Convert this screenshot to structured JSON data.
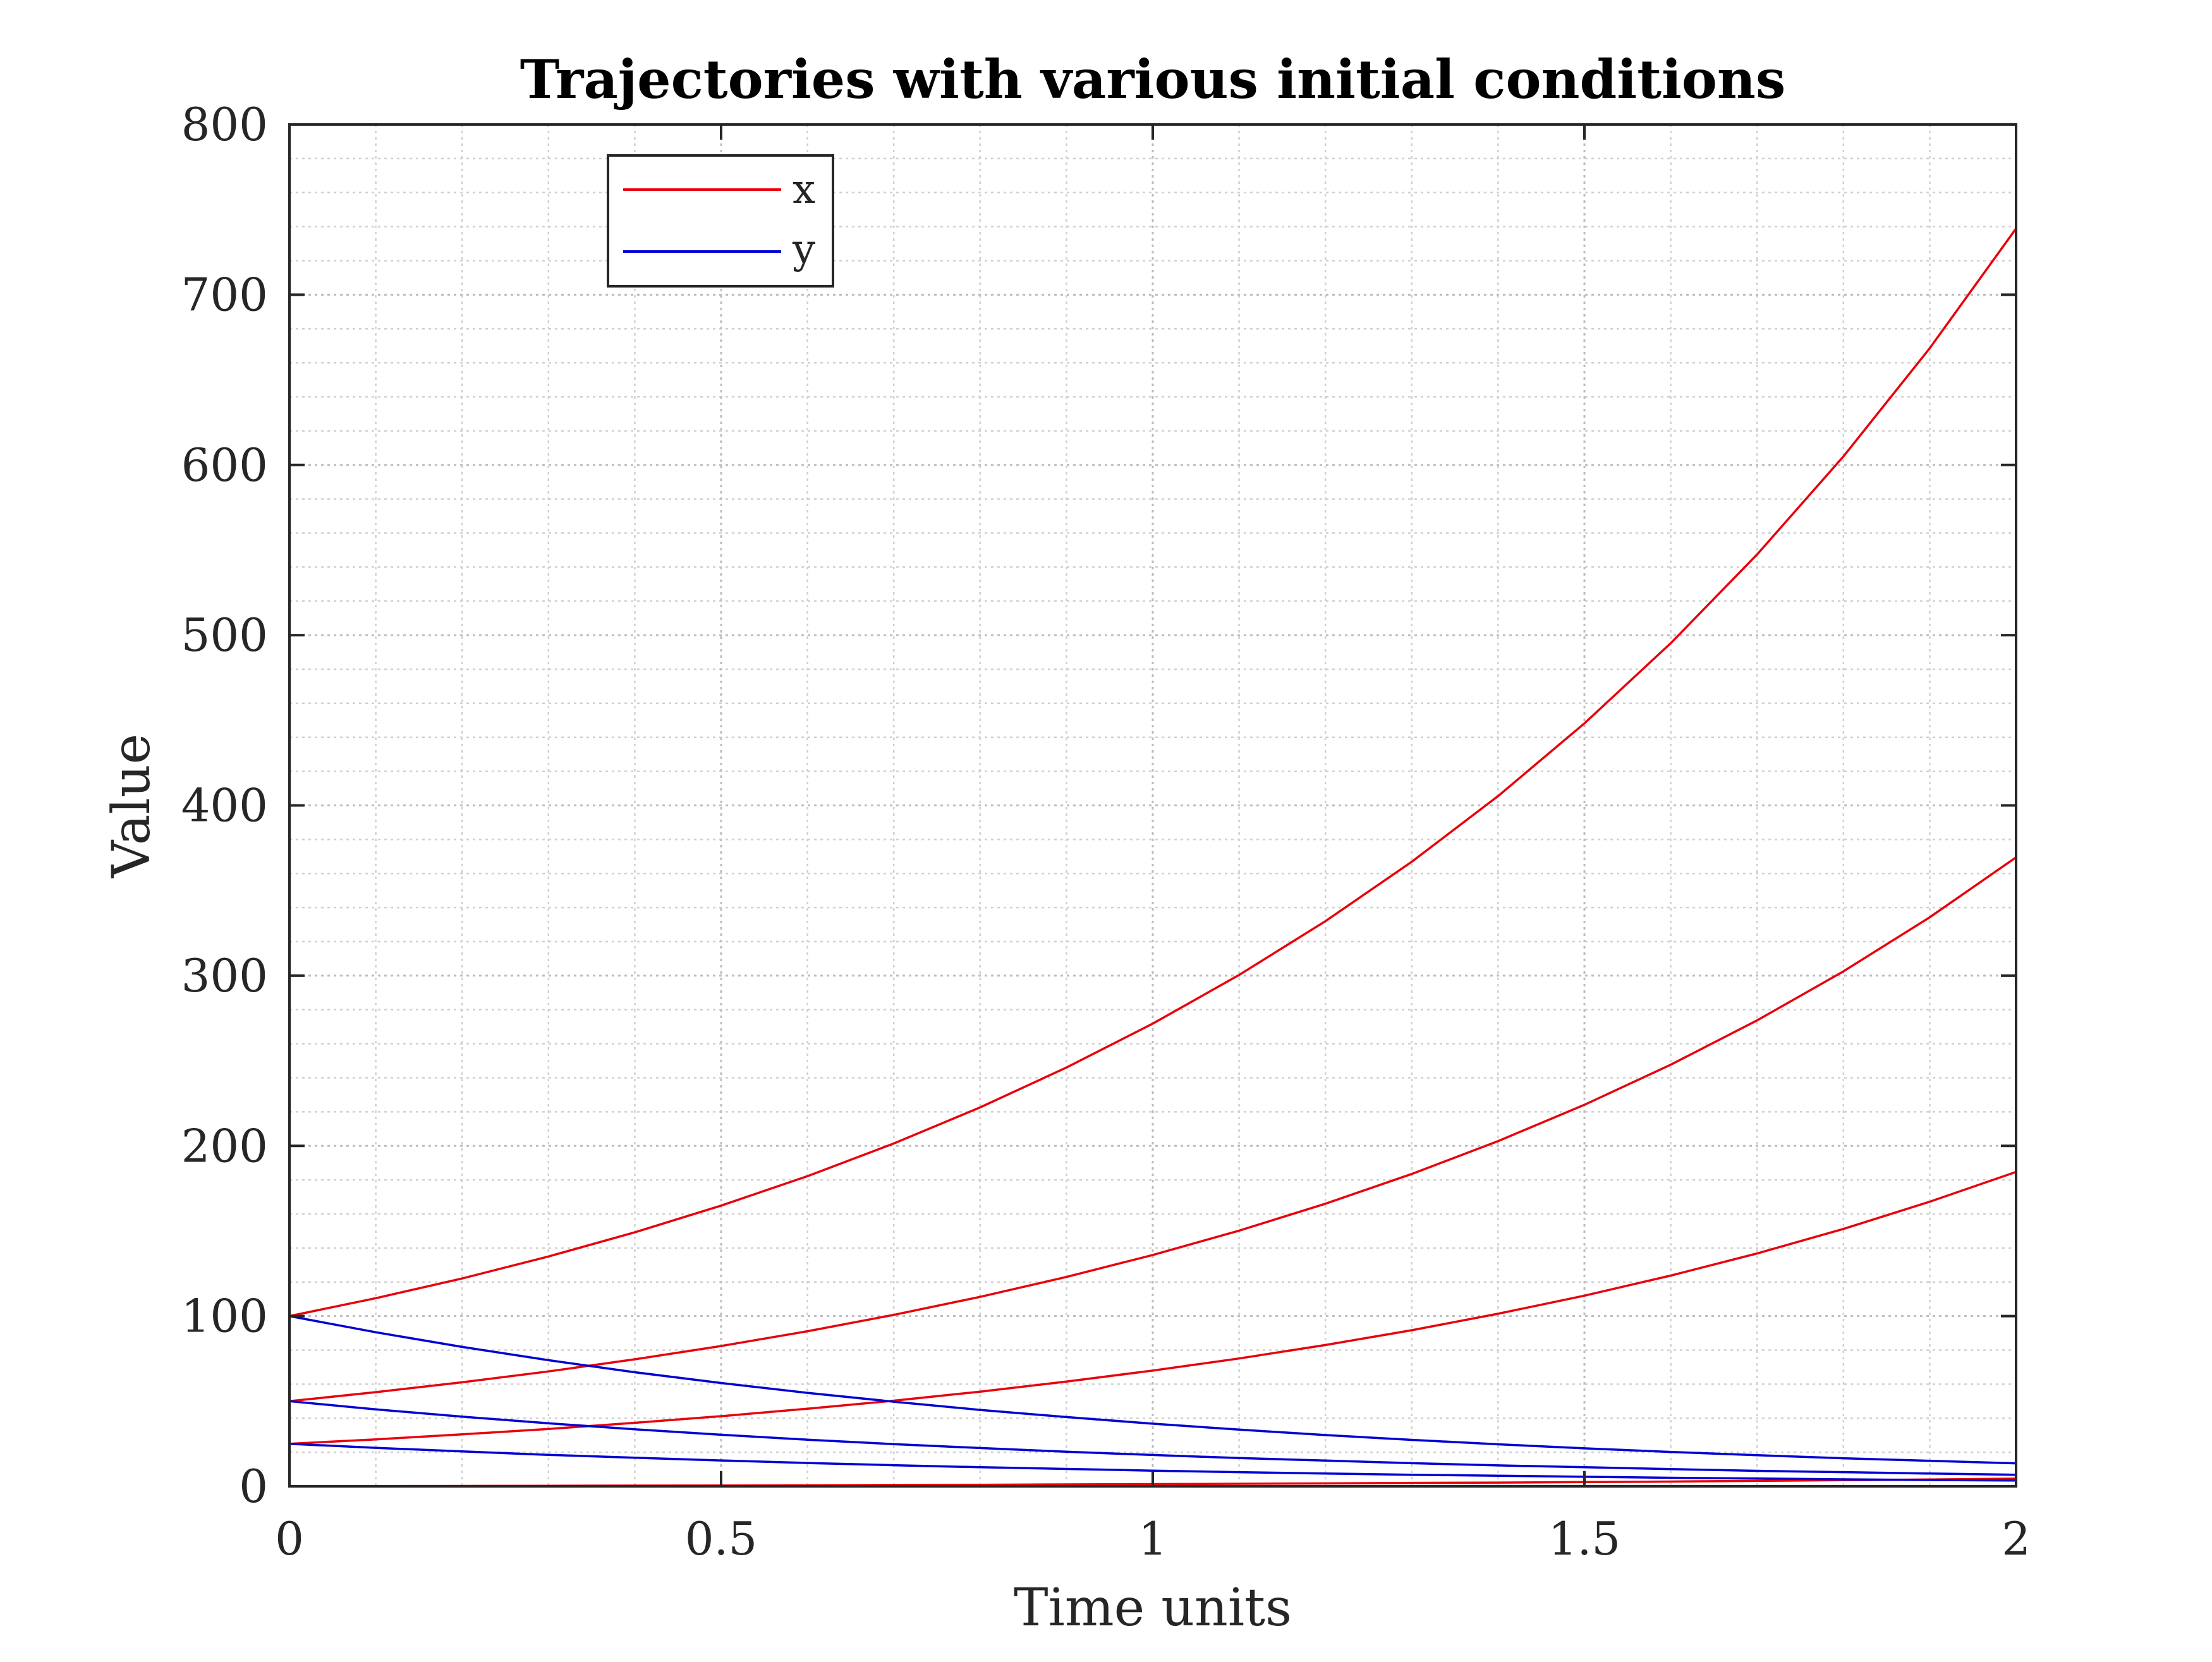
{
  "chart_data": {
    "type": "line",
    "title": "Trajectories with various initial conditions",
    "xlabel": "Time units",
    "ylabel": "Value",
    "xlim": [
      0,
      2
    ],
    "ylim": [
      0,
      800
    ],
    "xticks": [
      0,
      0.5,
      1,
      1.5,
      2
    ],
    "xtick_labels": [
      "0",
      "0.5",
      "1",
      "1.5",
      "2"
    ],
    "yticks": [
      0,
      100,
      200,
      300,
      400,
      500,
      600,
      700,
      800
    ],
    "ytick_labels": [
      "0",
      "100",
      "200",
      "300",
      "400",
      "500",
      "600",
      "700",
      "800"
    ],
    "grid": "major and minor",
    "legend": {
      "position": "top-left",
      "entries": [
        "x",
        "y"
      ]
    },
    "colors": {
      "x": "#e8000b",
      "y": "#0000d4"
    },
    "x": [
      0,
      0.1,
      0.2,
      0.3,
      0.4,
      0.5,
      0.6,
      0.7,
      0.8,
      0.9,
      1.0,
      1.1,
      1.2,
      1.3,
      1.4,
      1.5,
      1.6,
      1.7,
      1.8,
      1.9,
      2.0
    ],
    "series": [
      {
        "name": "x",
        "color": "#e8000b",
        "values": [
          100,
          110.5,
          122.1,
          135.0,
          149.2,
          164.9,
          182.2,
          201.4,
          222.6,
          246.0,
          271.8,
          300.4,
          332.0,
          366.9,
          405.5,
          448.2,
          495.3,
          547.4,
          605.0,
          668.6,
          738.9
        ]
      },
      {
        "series_group": "x",
        "color": "#e8000b",
        "values": [
          50,
          55.3,
          61.1,
          67.5,
          74.6,
          82.4,
          91.1,
          100.7,
          111.3,
          123.0,
          135.9,
          150.2,
          166.0,
          183.5,
          202.8,
          224.1,
          247.7,
          273.7,
          302.5,
          334.3,
          369.5
        ]
      },
      {
        "series_group": "x",
        "color": "#e8000b",
        "values": [
          25,
          27.6,
          30.5,
          33.7,
          37.3,
          41.2,
          45.6,
          50.3,
          55.6,
          61.5,
          68.0,
          75.1,
          83.0,
          91.7,
          101.4,
          112.0,
          123.8,
          136.8,
          151.2,
          167.2,
          184.7
        ]
      },
      {
        "series_group": "x",
        "color": "#e8000b",
        "values": [
          0,
          0.1,
          0.2,
          0.3,
          0.4,
          0.5,
          0.6,
          0.8,
          0.9,
          1.1,
          1.3,
          1.5,
          1.7,
          2.0,
          2.2,
          2.5,
          2.8,
          3.2,
          3.6,
          4.0,
          4.5
        ]
      },
      {
        "name": "y",
        "color": "#0000d4",
        "values": [
          100,
          90.5,
          81.9,
          74.1,
          67.0,
          60.7,
          54.9,
          49.7,
          44.9,
          40.7,
          36.8,
          33.3,
          30.1,
          27.3,
          24.7,
          22.3,
          20.2,
          18.3,
          16.5,
          15.0,
          13.5
        ]
      },
      {
        "series_group": "y",
        "color": "#0000d4",
        "values": [
          50,
          45.2,
          40.9,
          37.0,
          33.5,
          30.3,
          27.4,
          24.8,
          22.5,
          20.3,
          18.4,
          16.6,
          15.1,
          13.6,
          12.3,
          11.2,
          10.1,
          9.1,
          8.3,
          7.5,
          6.8
        ]
      },
      {
        "series_group": "y",
        "color": "#0000d4",
        "values": [
          25,
          22.6,
          20.5,
          18.5,
          16.8,
          15.2,
          13.7,
          12.4,
          11.2,
          10.2,
          9.2,
          8.3,
          7.5,
          6.8,
          6.2,
          5.6,
          5.0,
          4.6,
          4.1,
          3.7,
          3.4
        ]
      },
      {
        "series_group": "y",
        "color": "#0000d4",
        "values": [
          0,
          0,
          0,
          0,
          0,
          0,
          0,
          0,
          0,
          0,
          0,
          0,
          0,
          0,
          0,
          0,
          0,
          0,
          0,
          0,
          0
        ]
      }
    ]
  }
}
